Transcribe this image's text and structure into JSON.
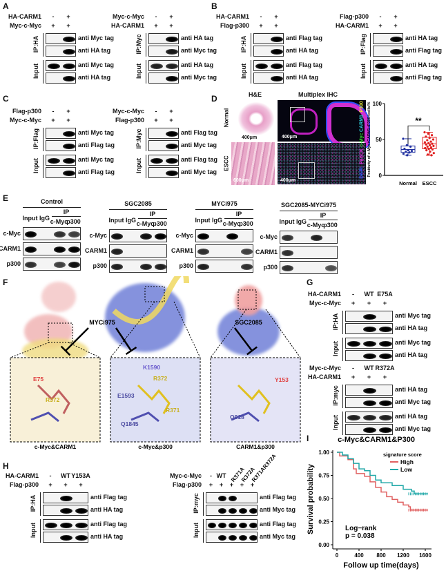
{
  "panel_labels": {
    "A": "A",
    "B": "B",
    "C": "C",
    "D": "D",
    "E": "E",
    "F": "F",
    "G": "G",
    "H": "H",
    "I": "I"
  },
  "blots": {
    "A1": {
      "conds": [
        {
          "label": "HA-CARM1",
          "vals": [
            "-",
            "+"
          ]
        },
        {
          "label": "Myc-c-Myc",
          "vals": [
            "+",
            "+"
          ]
        }
      ],
      "groups": [
        {
          "label": "IP:HA",
          "rows": [
            {
              "label": "anti Myc tag",
              "bands": [
                0,
                1
              ]
            },
            {
              "label": "anti HA tag",
              "bands": [
                0,
                1
              ]
            }
          ]
        },
        {
          "label": "Input",
          "rows": [
            {
              "label": "anti Myc tag",
              "bands": [
                1,
                1
              ]
            },
            {
              "label": "anti HA tag",
              "bands": [
                0,
                1
              ]
            }
          ]
        }
      ]
    },
    "A2": {
      "conds": [
        {
          "label": "Myc-c-Myc",
          "vals": [
            "-",
            "+"
          ]
        },
        {
          "label": "HA-CARM1",
          "vals": [
            "+",
            "+"
          ]
        }
      ],
      "groups": [
        {
          "label": "IP:Myc",
          "rows": [
            {
              "label": "anti HA tag",
              "bands": [
                0,
                1
              ]
            },
            {
              "label": "anti Myc tag",
              "bands": [
                0,
                0.85
              ]
            }
          ]
        },
        {
          "label": "Input",
          "rows": [
            {
              "label": "anti HA tag",
              "bands": [
                0.8,
                0.8
              ]
            },
            {
              "label": "anti Myc tag",
              "bands": [
                0,
                1
              ]
            }
          ]
        }
      ]
    },
    "B1": {
      "conds": [
        {
          "label": "HA-CARM1",
          "vals": [
            "-",
            "+"
          ]
        },
        {
          "label": "Flag-p300",
          "vals": [
            "+",
            "+"
          ]
        }
      ],
      "groups": [
        {
          "label": "IP:HA",
          "rows": [
            {
              "label": "anti Flag tag",
              "bands": [
                0,
                1
              ]
            },
            {
              "label": "anti HA tag",
              "bands": [
                0,
                1
              ]
            }
          ]
        },
        {
          "label": "Input",
          "rows": [
            {
              "label": "anti Flag tag",
              "bands": [
                1,
                1
              ]
            },
            {
              "label": "anti HA tag",
              "bands": [
                0,
                1
              ]
            }
          ]
        }
      ]
    },
    "B2": {
      "conds": [
        {
          "label": "Flag-p300",
          "vals": [
            "-",
            "+"
          ]
        },
        {
          "label": "HA-CARM1",
          "vals": [
            "+",
            "+"
          ]
        }
      ],
      "groups": [
        {
          "label": "IP:Flag",
          "rows": [
            {
              "label": "anti HA tag",
              "bands": [
                0,
                1
              ]
            },
            {
              "label": "anti Flag tag",
              "bands": [
                0,
                1
              ]
            }
          ]
        },
        {
          "label": "Input",
          "rows": [
            {
              "label": "anti HA tag",
              "bands": [
                1,
                1
              ]
            },
            {
              "label": "anti Flag tag",
              "bands": [
                0,
                1
              ]
            }
          ]
        }
      ]
    },
    "C1": {
      "conds": [
        {
          "label": "Flag-p300",
          "vals": [
            "-",
            "+"
          ]
        },
        {
          "label": "Myc-c-Myc",
          "vals": [
            "+",
            "+"
          ]
        }
      ],
      "groups": [
        {
          "label": "IP:Flag",
          "rows": [
            {
              "label": "anti Myc tag",
              "bands": [
                0,
                1
              ]
            },
            {
              "label": "anti Flag tag",
              "bands": [
                0,
                1
              ]
            }
          ]
        },
        {
          "label": "Input",
          "rows": [
            {
              "label": "anti Myc tag",
              "bands": [
                1,
                1
              ]
            },
            {
              "label": "anti Flag tag",
              "bands": [
                0,
                1
              ]
            }
          ]
        }
      ]
    },
    "C2": {
      "conds": [
        {
          "label": "Myc-c-Myc",
          "vals": [
            "-",
            "+"
          ]
        },
        {
          "label": "Flag-p300",
          "vals": [
            "+",
            "+"
          ]
        }
      ],
      "groups": [
        {
          "label": "IP:Myc",
          "rows": [
            {
              "label": "anti Flag tag",
              "bands": [
                0,
                1
              ]
            },
            {
              "label": "anti Myc tag",
              "bands": [
                0,
                1
              ]
            }
          ]
        },
        {
          "label": "Input",
          "rows": [
            {
              "label": "anti Flag tag",
              "bands": [
                1,
                1
              ]
            },
            {
              "label": "anti Myc tag",
              "bands": [
                0,
                1
              ]
            }
          ]
        }
      ]
    },
    "G1": {
      "conds": [
        {
          "label": "HA-CARM1",
          "vals": [
            "-",
            "WT",
            "E75A"
          ]
        },
        {
          "label": "Myc-c-Myc",
          "vals": [
            "+",
            "+",
            "+"
          ]
        }
      ],
      "groups": [
        {
          "label": "IP:HA",
          "rows": [
            {
              "label": "anti Myc tag",
              "bands": [
                0,
                1,
                0
              ]
            },
            {
              "label": "anti HA tag",
              "bands": [
                0,
                1,
                1
              ]
            }
          ]
        },
        {
          "label": "Input",
          "rows": [
            {
              "label": "anti Myc tag",
              "bands": [
                1,
                1,
                1
              ]
            },
            {
              "label": "anti HA tag",
              "bands": [
                0,
                1,
                1
              ]
            }
          ]
        }
      ]
    },
    "G2": {
      "conds": [
        {
          "label": "Myc-c-Myc",
          "vals": [
            "-",
            "WT",
            "R372A"
          ]
        },
        {
          "label": "HA-CARM1",
          "vals": [
            "+",
            "+",
            "+"
          ]
        }
      ],
      "groups": [
        {
          "label": "IP:myc",
          "rows": [
            {
              "label": "anti HA tag",
              "bands": [
                0,
                1,
                0
              ]
            },
            {
              "label": "anti Myc tag",
              "bands": [
                0,
                1,
                1
              ]
            }
          ]
        },
        {
          "label": "Input",
          "rows": [
            {
              "label": "anti HA tag",
              "bands": [
                0.8,
                0.8,
                0.8
              ]
            },
            {
              "label": "anti Myc tag",
              "bands": [
                0,
                1,
                1
              ]
            }
          ]
        }
      ]
    },
    "H1": {
      "conds": [
        {
          "label": "HA-CARM1",
          "vals": [
            "-",
            "WT",
            "Y153A"
          ]
        },
        {
          "label": "Flag-p300",
          "vals": [
            "+",
            "+",
            "+"
          ]
        }
      ],
      "groups": [
        {
          "label": "IP:HA",
          "rows": [
            {
              "label": "anti Flag tag",
              "bands": [
                0,
                1,
                0
              ]
            },
            {
              "label": "anti HA tag",
              "bands": [
                0,
                1,
                1
              ]
            }
          ]
        },
        {
          "label": "Input",
          "rows": [
            {
              "label": "anti Flag tag",
              "bands": [
                1,
                1,
                1
              ]
            },
            {
              "label": "anti HA tag",
              "bands": [
                0,
                1,
                1
              ]
            }
          ]
        }
      ]
    },
    "H2": {
      "conds": [
        {
          "label": "Myc-c-Myc",
          "vals": [
            "-",
            "WT",
            "R371A",
            "R372A",
            "R371AR372A"
          ]
        },
        {
          "label": "Flag-p300",
          "vals": [
            "+",
            "+",
            "+",
            "+",
            "+"
          ]
        }
      ],
      "groups": [
        {
          "label": "IP:myc",
          "rows": [
            {
              "label": "anti Flag tag",
              "bands": [
                0,
                1,
                1,
                0,
                0
              ]
            },
            {
              "label": "anti Myc tag",
              "bands": [
                0,
                1,
                1,
                1,
                1
              ]
            }
          ]
        },
        {
          "label": "Input",
          "rows": [
            {
              "label": "anti Flag tag",
              "bands": [
                1,
                1,
                1,
                1,
                1
              ]
            },
            {
              "label": "anti Myc tag",
              "bands": [
                0,
                1,
                1,
                1,
                1
              ]
            }
          ]
        }
      ]
    }
  },
  "panel_e": {
    "lanes": [
      "Input",
      "IgG"
    ],
    "ip_label": "IP",
    "ip_lanes": [
      "c-Myc",
      "p300"
    ],
    "blots": [
      {
        "title": "Control",
        "rows": [
          {
            "label": "c-Myc",
            "bands": [
              1,
              0,
              0.7,
              0.6
            ]
          },
          {
            "label": "CARM1",
            "bands": [
              1,
              0,
              1,
              1
            ]
          },
          {
            "label": "p300",
            "bands": [
              0.7,
              0,
              0.6,
              0.9
            ]
          }
        ]
      },
      {
        "title": "SGC2085",
        "rows": [
          {
            "label": "c-Myc",
            "bands": [
              0.9,
              0,
              0.9,
              1
            ]
          },
          {
            "label": "CARM1",
            "bands": [
              0.8,
              0,
              0,
              0
            ]
          },
          {
            "label": "p300",
            "bands": [
              0.8,
              0,
              0.8,
              0.8
            ]
          }
        ]
      },
      {
        "title": "MYCi975",
        "rows": [
          {
            "label": "c-Myc",
            "bands": [
              1,
              0,
              1,
              0
            ]
          },
          {
            "label": "CARM1",
            "bands": [
              0.7,
              0,
              0,
              0.6
            ]
          },
          {
            "label": "p300",
            "bands": [
              0.8,
              0,
              0,
              0.7
            ]
          }
        ]
      },
      {
        "title": "SGC2085-MYCi975",
        "rows": [
          {
            "label": "c-Myc",
            "bands": [
              0.7,
              0,
              0.8,
              0
            ]
          },
          {
            "label": "CARM1",
            "bands": [
              0.7,
              0,
              0,
              0
            ]
          },
          {
            "label": "p300",
            "bands": [
              0.7,
              0,
              0,
              0.5
            ]
          }
        ]
      }
    ]
  },
  "panel_d": {
    "he_title": "H&E",
    "ihc_title": "Multiplex IHC",
    "row_normal": "Normal",
    "row_escc": "ESCC",
    "scale_400": "400μm",
    "scale_600": "600μm",
    "channels": [
      {
        "label": "P300",
        "color": "#e8e830"
      },
      {
        "label": "CARM1",
        "color": "#30d0e0"
      },
      {
        "label": "c-Myc",
        "color": "#30e030"
      },
      {
        "label": "PanCK",
        "color": "#e030e0"
      },
      {
        "label": "DAPI",
        "color": "#3050ff"
      }
    ],
    "chart_data": {
      "type": "box",
      "ylabel": "Positivity of c-Myc+CARM1+P300+cells/%",
      "ylim": [
        0,
        100
      ],
      "yticks": [
        0,
        50,
        100
      ],
      "significance": "**",
      "categories": [
        "Normal",
        "ESCC"
      ],
      "colors": [
        "#2030a0",
        "#e02020"
      ],
      "series": [
        {
          "name": "Normal",
          "points": [
            51,
            42,
            40,
            37,
            35,
            34,
            33,
            32,
            30,
            28
          ],
          "q1": 32,
          "median": 36,
          "q3": 41,
          "min": 28,
          "max": 51
        },
        {
          "name": "ESCC",
          "points": [
            60,
            58,
            56,
            54,
            52,
            50,
            49,
            47,
            46,
            45,
            44,
            43,
            42,
            41,
            40,
            39,
            38,
            37,
            36,
            35,
            33,
            31,
            29,
            28
          ],
          "q1": 37,
          "median": 44,
          "q3": 53,
          "min": 28,
          "max": 60
        }
      ]
    }
  },
  "panel_f": {
    "inhibitor_1": "MYCi975",
    "inhibitor_2": "SGC2085",
    "insets": [
      {
        "title": "c-Myc&CARM1",
        "residues": [
          {
            "label": "E75",
            "color": "#e04040"
          },
          {
            "label": "R372",
            "color": "#c8b020"
          }
        ]
      },
      {
        "title": "c-Myc&p300",
        "residues": [
          {
            "label": "K1590",
            "color": "#6a5acd"
          },
          {
            "label": "R372",
            "color": "#c8b020"
          },
          {
            "label": "E1593",
            "color": "#4a4aa0"
          },
          {
            "label": "R371",
            "color": "#c8b020"
          },
          {
            "label": "Q1845",
            "color": "#4a4aa0"
          }
        ]
      },
      {
        "title": "CARM1&p300",
        "residues": [
          {
            "label": "Y153",
            "color": "#e04040"
          },
          {
            "label": "Q918",
            "color": "#4a4aa0"
          }
        ]
      }
    ]
  },
  "panel_i": {
    "chart_data": {
      "type": "line",
      "title": "c-Myc&CARM1&P300",
      "xlabel": "Follow up time(days)",
      "ylabel": "Survival probability",
      "xlim": [
        0,
        1650
      ],
      "ylim": [
        0,
        1
      ],
      "xticks": [
        0,
        400,
        800,
        1200,
        1600
      ],
      "yticks": [
        "0.00",
        "0.25",
        "0.50",
        "0.75",
        "1.00"
      ],
      "legend_title": "signature score",
      "legend_position": "top-right",
      "annotation": [
        "Log−rank",
        "p = 0.038"
      ],
      "series": [
        {
          "name": "High",
          "color": "#e06060",
          "x": [
            0,
            50,
            200,
            300,
            350,
            500,
            600,
            700,
            800,
            900,
            1000,
            1100,
            1200,
            1300,
            1330,
            1650
          ],
          "y": [
            1,
            0.96,
            0.92,
            0.82,
            0.77,
            0.74,
            0.68,
            0.62,
            0.57,
            0.52,
            0.49,
            0.46,
            0.43,
            0.41,
            0.375,
            0.375
          ]
        },
        {
          "name": "Low",
          "color": "#20a8a8",
          "x": [
            0,
            100,
            200,
            300,
            400,
            500,
            600,
            700,
            800,
            1000,
            1200,
            1350,
            1400,
            1650
          ],
          "y": [
            1,
            0.97,
            0.93,
            0.88,
            0.82,
            0.8,
            0.75,
            0.7,
            0.67,
            0.64,
            0.6,
            0.58,
            0.55,
            0.55
          ]
        }
      ]
    }
  }
}
